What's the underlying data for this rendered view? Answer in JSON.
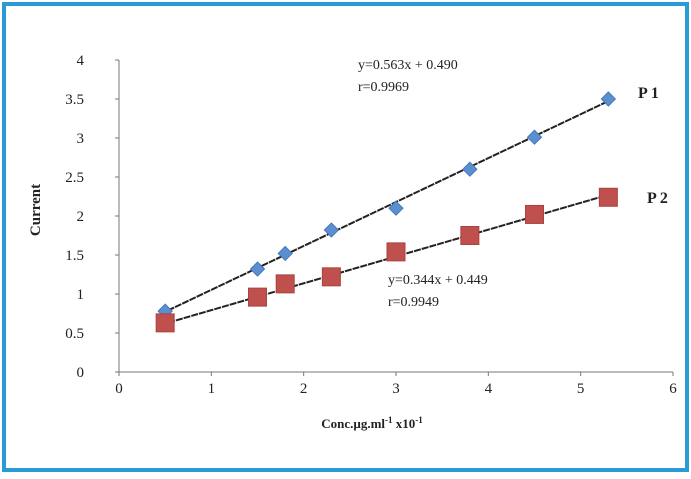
{
  "colors": {
    "frame_border": "#2A9BD6",
    "p1_marker": "#5B8FD0",
    "p2_marker": "#C0504D",
    "line": "#222222"
  },
  "chart_data": {
    "type": "scatter",
    "xlabel": "Conc.µg.ml",
    "xlabel_sup1": "-1",
    "xlabel_mid": " x10",
    "xlabel_sup2": "-1",
    "ylabel": "Current",
    "xlim": [
      0,
      6
    ],
    "ylim": [
      0,
      4
    ],
    "x_ticks": [
      "0",
      "1",
      "2",
      "3",
      "4",
      "5",
      "6"
    ],
    "y_ticks": [
      "0",
      "0.5",
      "1",
      "1.5",
      "2",
      "2.5",
      "3",
      "3.5",
      "4"
    ],
    "grid": false,
    "series": [
      {
        "name": "P 1",
        "marker": "diamond",
        "x": [
          0.5,
          1.5,
          1.8,
          2.3,
          3.0,
          3.8,
          4.5,
          5.3
        ],
        "y": [
          0.78,
          1.32,
          1.52,
          1.82,
          2.1,
          2.6,
          3.01,
          3.5
        ],
        "fit": {
          "slope": 0.563,
          "intercept": 0.49
        },
        "equation": "y=0.563x + 0.490",
        "r": "r=0.9969"
      },
      {
        "name": "P 2",
        "marker": "square",
        "x": [
          0.5,
          1.5,
          1.8,
          2.3,
          3.0,
          3.8,
          4.5,
          5.3
        ],
        "y": [
          0.63,
          0.96,
          1.13,
          1.22,
          1.54,
          1.75,
          2.02,
          2.24
        ],
        "fit": {
          "slope": 0.344,
          "intercept": 0.449
        },
        "equation": "y=0.344x + 0.449",
        "r": "r=0.9949"
      }
    ]
  }
}
